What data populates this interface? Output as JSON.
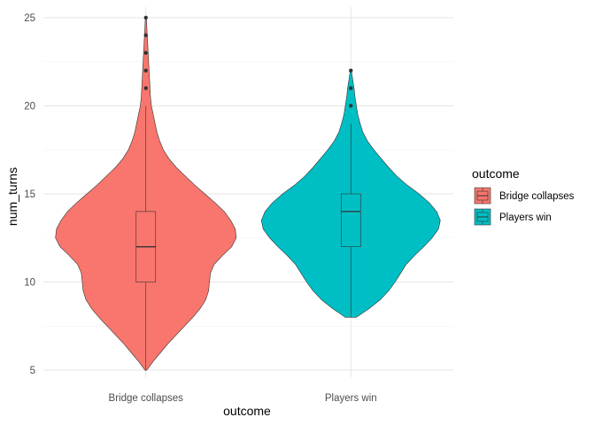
{
  "chart_data": {
    "type": "violin",
    "title": "",
    "xlabel": "outcome",
    "ylabel": "num_turns",
    "ylim": [
      4.6,
      25.6
    ],
    "yticks": [
      5,
      10,
      15,
      20,
      25
    ],
    "grid": true,
    "legend": {
      "title": "outcome",
      "position": "right",
      "entries": [
        "Bridge collapses",
        "Players win"
      ]
    },
    "categories": [
      "Bridge collapses",
      "Players win"
    ],
    "colors": {
      "Bridge collapses": "#F8766D",
      "Players win": "#00BFC4"
    },
    "series": [
      {
        "name": "Bridge collapses",
        "color": "#F8766D",
        "box": {
          "q1": 10,
          "median": 12,
          "q3": 14,
          "lower_whisker": 5,
          "upper_whisker": 20
        },
        "outliers": [
          21,
          22,
          23,
          24,
          25
        ],
        "density": [
          [
            5.0,
            0.01
          ],
          [
            5.5,
            0.08
          ],
          [
            6.0,
            0.16
          ],
          [
            6.5,
            0.24
          ],
          [
            7.0,
            0.33
          ],
          [
            7.5,
            0.42
          ],
          [
            8.0,
            0.51
          ],
          [
            8.5,
            0.59
          ],
          [
            9.0,
            0.65
          ],
          [
            9.5,
            0.68
          ],
          [
            10.0,
            0.69
          ],
          [
            10.5,
            0.7
          ],
          [
            11.0,
            0.74
          ],
          [
            11.5,
            0.83
          ],
          [
            12.0,
            0.93
          ],
          [
            12.5,
            0.98
          ],
          [
            13.0,
            0.97
          ],
          [
            13.5,
            0.92
          ],
          [
            14.0,
            0.85
          ],
          [
            14.5,
            0.75
          ],
          [
            15.0,
            0.64
          ],
          [
            15.5,
            0.53
          ],
          [
            16.0,
            0.43
          ],
          [
            16.5,
            0.33
          ],
          [
            17.0,
            0.25
          ],
          [
            17.5,
            0.19
          ],
          [
            18.0,
            0.15
          ],
          [
            18.5,
            0.12
          ],
          [
            19.0,
            0.1
          ],
          [
            19.5,
            0.08
          ],
          [
            20.0,
            0.06
          ],
          [
            20.5,
            0.05
          ],
          [
            21.0,
            0.045
          ],
          [
            21.5,
            0.04
          ],
          [
            22.0,
            0.035
          ],
          [
            22.5,
            0.03
          ],
          [
            23.0,
            0.025
          ],
          [
            23.5,
            0.02
          ],
          [
            24.0,
            0.015
          ],
          [
            24.5,
            0.01
          ],
          [
            25.0,
            0.006
          ]
        ]
      },
      {
        "name": "Players win",
        "color": "#00BFC4",
        "box": {
          "q1": 12,
          "median": 14,
          "q3": 15,
          "lower_whisker": 8,
          "upper_whisker": 19
        },
        "outliers": [
          20,
          21,
          22
        ],
        "density": [
          [
            8.0,
            0.06
          ],
          [
            8.5,
            0.2
          ],
          [
            9.0,
            0.32
          ],
          [
            9.5,
            0.41
          ],
          [
            10.0,
            0.48
          ],
          [
            10.5,
            0.54
          ],
          [
            11.0,
            0.6
          ],
          [
            11.5,
            0.69
          ],
          [
            12.0,
            0.79
          ],
          [
            12.5,
            0.88
          ],
          [
            13.0,
            0.95
          ],
          [
            13.5,
            0.97
          ],
          [
            14.0,
            0.93
          ],
          [
            14.5,
            0.85
          ],
          [
            15.0,
            0.74
          ],
          [
            15.5,
            0.61
          ],
          [
            16.0,
            0.5
          ],
          [
            16.5,
            0.41
          ],
          [
            17.0,
            0.33
          ],
          [
            17.5,
            0.25
          ],
          [
            18.0,
            0.18
          ],
          [
            18.5,
            0.13
          ],
          [
            19.0,
            0.1
          ],
          [
            19.5,
            0.075
          ],
          [
            20.0,
            0.06
          ],
          [
            20.5,
            0.045
          ],
          [
            21.0,
            0.035
          ],
          [
            21.5,
            0.02
          ],
          [
            22.0,
            0.006
          ]
        ]
      }
    ]
  }
}
